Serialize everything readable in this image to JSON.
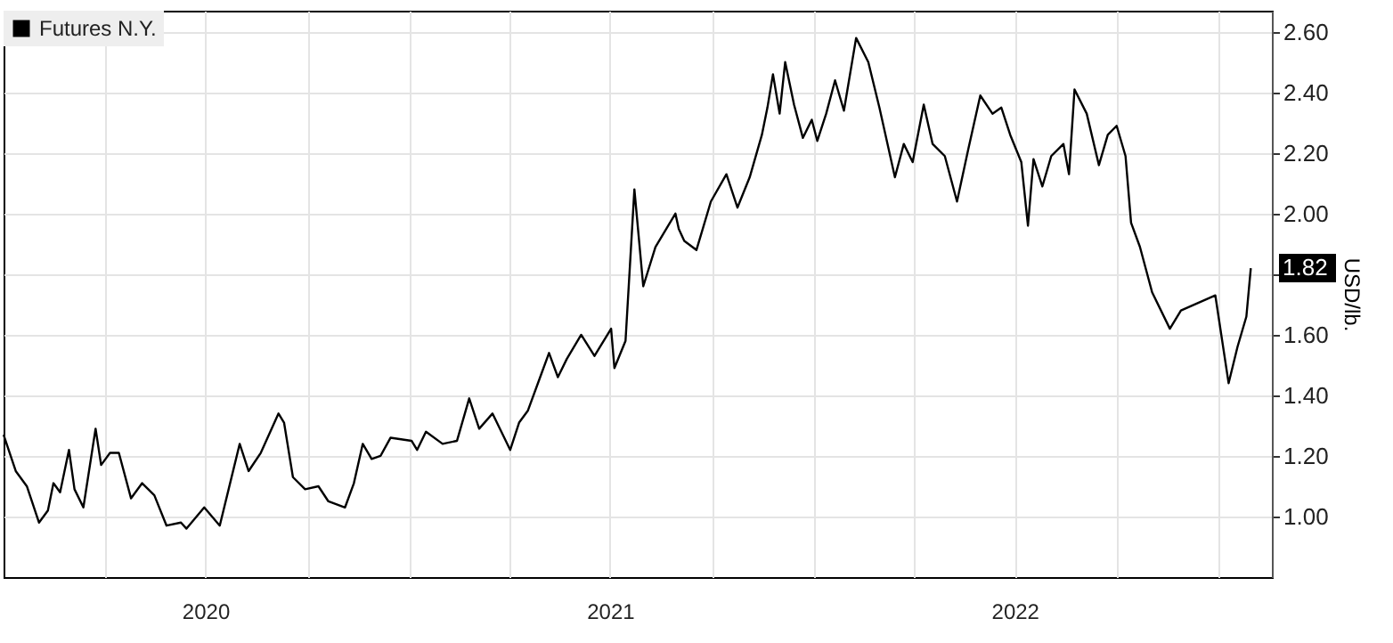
{
  "chart_data": {
    "type": "line",
    "ylabel": "USD/lb.",
    "x": [
      "2020-01-01",
      "2020-01-12",
      "2020-01-22",
      "2020-02-02",
      "2020-02-10",
      "2020-02-15",
      "2020-02-21",
      "2020-02-29",
      "2020-03-05",
      "2020-03-13",
      "2020-03-24",
      "2020-03-29",
      "2020-04-06",
      "2020-04-14",
      "2020-04-25",
      "2020-05-05",
      "2020-05-16",
      "2020-05-27",
      "2020-06-09",
      "2020-06-14",
      "2020-06-30",
      "2020-07-14",
      "2020-07-22",
      "2020-08-01",
      "2020-08-09",
      "2020-08-20",
      "2020-09-05",
      "2020-09-10",
      "2020-09-18",
      "2020-09-29",
      "2020-10-11",
      "2020-10-20",
      "2020-11-04",
      "2020-11-12",
      "2020-11-20",
      "2020-11-28",
      "2020-12-06",
      "2020-12-15",
      "2021-01-03",
      "2021-01-08",
      "2021-01-16",
      "2021-01-31",
      "2021-02-13",
      "2021-02-24",
      "2021-03-05",
      "2021-03-17",
      "2021-04-02",
      "2021-04-10",
      "2021-04-18",
      "2021-04-29",
      "2021-05-07",
      "2021-05-15",
      "2021-05-23",
      "2021-06-05",
      "2021-06-17",
      "2021-07-02",
      "2021-07-05",
      "2021-07-15",
      "2021-07-23",
      "2021-07-31",
      "2021-08-11",
      "2021-08-29",
      "2021-09-01",
      "2021-09-06",
      "2021-09-17",
      "2021-09-30",
      "2021-10-14",
      "2021-10-24",
      "2021-11-04",
      "2021-11-15",
      "2021-11-20",
      "2021-11-25",
      "2021-12-01",
      "2021-12-06",
      "2021-12-14",
      "2021-12-22",
      "2021-12-30",
      "2022-01-04",
      "2022-01-12",
      "2022-01-20",
      "2022-01-28",
      "2022-02-08",
      "2022-02-19",
      "2022-03-01",
      "2022-03-15",
      "2022-03-23",
      "2022-03-31",
      "2022-04-10",
      "2022-04-18",
      "2022-04-29",
      "2022-05-10",
      "2022-05-20",
      "2022-05-31",
      "2022-06-11",
      "2022-06-19",
      "2022-06-27",
      "2022-07-07",
      "2022-07-13",
      "2022-07-18",
      "2022-07-26",
      "2022-08-03",
      "2022-08-14",
      "2022-08-19",
      "2022-08-24",
      "2022-09-04",
      "2022-09-15",
      "2022-09-23",
      "2022-10-01",
      "2022-10-09",
      "2022-10-14",
      "2022-10-22",
      "2022-11-02",
      "2022-11-18",
      "2022-11-28",
      "2022-12-29",
      "2023-01-10",
      "2023-01-18",
      "2023-01-26",
      "2023-01-30"
    ],
    "series": [
      {
        "name": "Futures N.Y.",
        "color": "#000000",
        "values": [
          1.27,
          1.15,
          1.1,
          0.98,
          1.02,
          1.11,
          1.08,
          1.22,
          1.09,
          1.03,
          1.29,
          1.17,
          1.21,
          1.21,
          1.06,
          1.11,
          1.07,
          0.97,
          0.98,
          0.96,
          1.03,
          0.97,
          1.09,
          1.24,
          1.15,
          1.21,
          1.34,
          1.31,
          1.13,
          1.09,
          1.1,
          1.05,
          1.03,
          1.11,
          1.24,
          1.19,
          1.2,
          1.26,
          1.25,
          1.22,
          1.28,
          1.24,
          1.25,
          1.39,
          1.29,
          1.34,
          1.22,
          1.31,
          1.35,
          1.46,
          1.54,
          1.46,
          1.52,
          1.6,
          1.53,
          1.62,
          1.49,
          1.58,
          2.08,
          1.76,
          1.89,
          2.0,
          1.95,
          1.91,
          1.88,
          2.04,
          2.13,
          2.02,
          2.12,
          2.26,
          2.35,
          2.46,
          2.33,
          2.5,
          2.36,
          2.25,
          2.31,
          2.24,
          2.33,
          2.44,
          2.34,
          2.58,
          2.5,
          2.35,
          2.12,
          2.23,
          2.17,
          2.36,
          2.23,
          2.19,
          2.04,
          2.21,
          2.39,
          2.33,
          2.35,
          2.26,
          2.17,
          1.96,
          2.18,
          2.09,
          2.19,
          2.23,
          2.13,
          2.41,
          2.33,
          2.16,
          2.26,
          2.29,
          2.19,
          1.97,
          1.89,
          1.74,
          1.62,
          1.68,
          1.73,
          1.44,
          1.56,
          1.66,
          1.82
        ]
      }
    ],
    "xlim": [
      "2020-01-01",
      "2023-02-18"
    ],
    "xticks": [
      {
        "value": "2020-04-01",
        "label": null
      },
      {
        "value": "2020-07-01",
        "label": "2020"
      },
      {
        "value": "2020-10-01",
        "label": null
      },
      {
        "value": "2021-01-01",
        "label": null
      },
      {
        "value": "2021-04-01",
        "label": null
      },
      {
        "value": "2021-07-01",
        "label": "2021"
      },
      {
        "value": "2021-10-01",
        "label": null
      },
      {
        "value": "2022-01-01",
        "label": null
      },
      {
        "value": "2022-04-01",
        "label": null
      },
      {
        "value": "2022-07-01",
        "label": "2022"
      },
      {
        "value": "2022-10-01",
        "label": null
      },
      {
        "value": "2023-01-01",
        "label": null
      }
    ],
    "ylim": [
      0.8,
      2.67
    ],
    "yticks": [
      {
        "value": 1,
        "label": "1.00"
      },
      {
        "value": 1.2,
        "label": "1.20"
      },
      {
        "value": 1.4,
        "label": "1.40"
      },
      {
        "value": 1.6,
        "label": "1.60"
      },
      {
        "value": 1.8,
        "label": null
      },
      {
        "value": 2,
        "label": "2.00"
      },
      {
        "value": 2.2,
        "label": "2.20"
      },
      {
        "value": 2.4,
        "label": "2.40"
      },
      {
        "value": 2.6,
        "label": "2.60"
      }
    ],
    "annotations": [
      "1.82"
    ],
    "grid": true,
    "legend": "top left",
    "marker": "none",
    "line_style": "solid"
  }
}
